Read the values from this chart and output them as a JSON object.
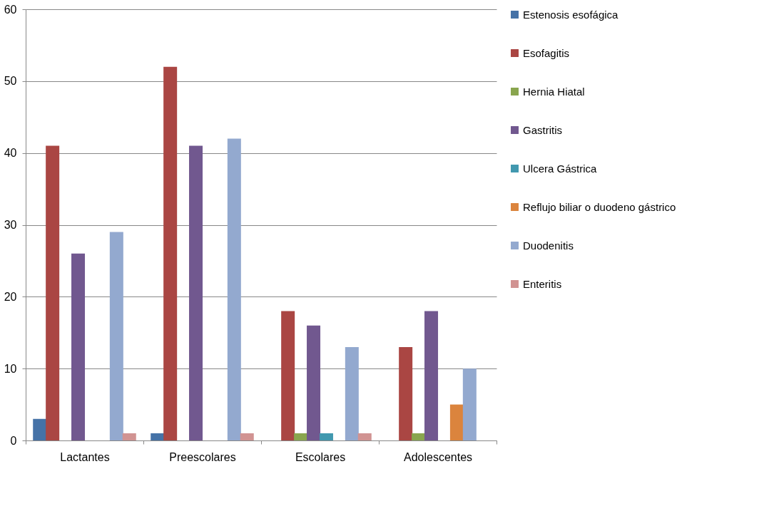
{
  "chart_data": {
    "type": "bar",
    "categories": [
      "Lactantes",
      "Preescolares",
      "Escolares",
      "Adolescentes"
    ],
    "series": [
      {
        "name": "Estenosis esofágica",
        "color": "#4572a7",
        "values": [
          3,
          1,
          null,
          null
        ]
      },
      {
        "name": "Esofagitis",
        "color": "#aa4643",
        "values": [
          41,
          52,
          18,
          13
        ]
      },
      {
        "name": "Hernia Hiatal",
        "color": "#89a54e",
        "values": [
          null,
          null,
          1,
          1
        ]
      },
      {
        "name": "Gastritis",
        "color": "#71588f",
        "values": [
          26,
          41,
          16,
          18
        ]
      },
      {
        "name": "Ulcera Gástrica",
        "color": "#4198af",
        "values": [
          null,
          null,
          1,
          null
        ]
      },
      {
        "name": "Reflujo biliar o duodeno gástrico",
        "color": "#db843d",
        "values": [
          null,
          null,
          null,
          5
        ]
      },
      {
        "name": "Duodenitis",
        "color": "#93a9cf",
        "values": [
          29,
          42,
          13,
          10
        ]
      },
      {
        "name": "Enteritis",
        "color": "#d19392",
        "values": [
          1,
          1,
          1,
          null
        ]
      }
    ],
    "ylim": [
      0,
      60
    ],
    "yticks": [
      0,
      10,
      20,
      30,
      40,
      50,
      60
    ],
    "grid": "y",
    "legend": "right"
  }
}
